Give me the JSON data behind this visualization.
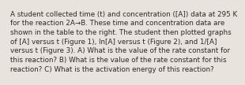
{
  "lines": [
    "A student collected time (t) and concentration ([A]) data at 295 K",
    "for the reaction 2A→B. These time and concentration data are",
    "shown in the table to the right. The student then plotted graphs",
    "of [A] versus t (Figure 1), ln[A] versus t (Figure 2), and 1/[A]",
    "versus t (Figure 3). A) What is the value of the rate constant for",
    "this reaction? B) What is the value of the rate constant for this",
    "reaction? C) What is the activation energy of this reaction?"
  ],
  "font_size": 6.3,
  "text_color": "#2a2a2a",
  "bg_color": "#e8e4dd",
  "fig_width": 2.61,
  "fig_height": 0.88
}
